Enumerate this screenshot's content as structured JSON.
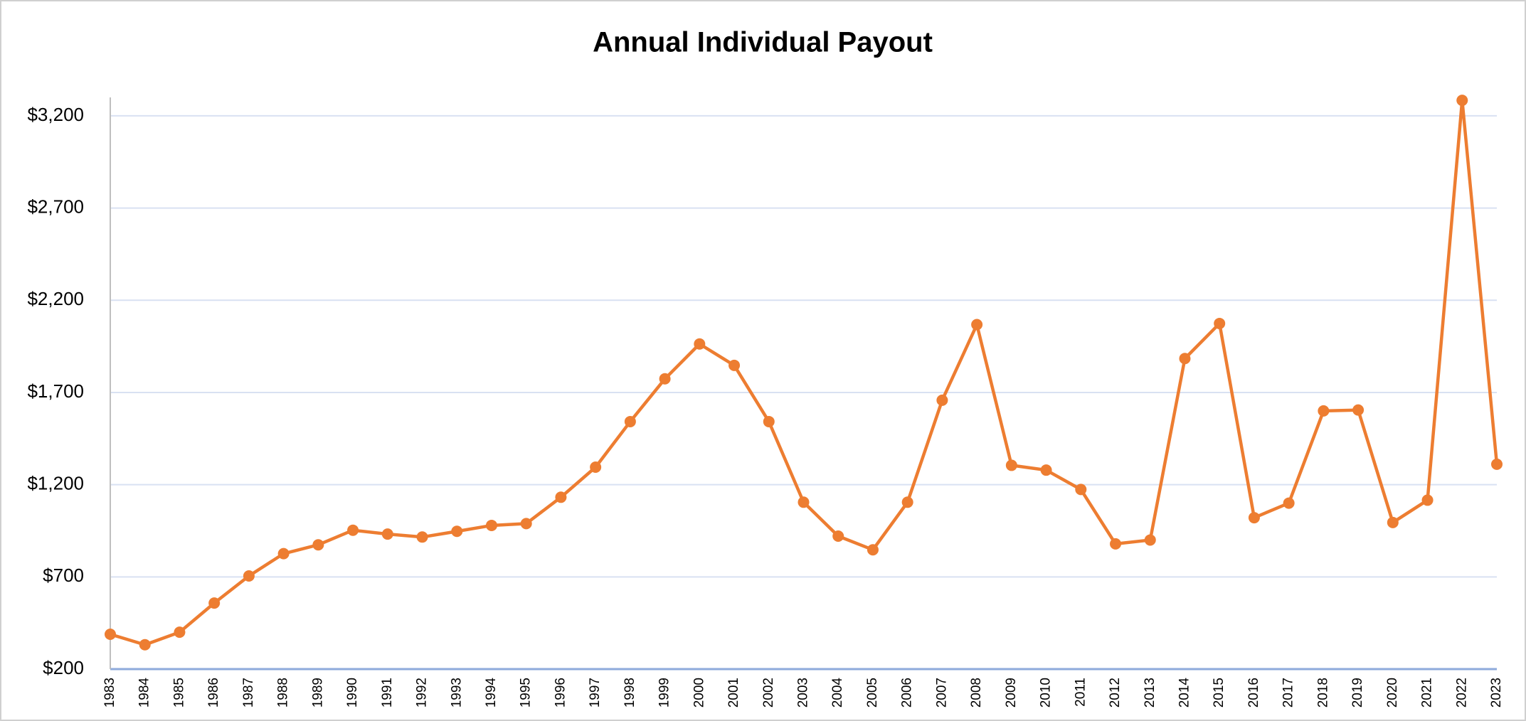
{
  "chart_data": {
    "type": "line",
    "title": "Annual Individual Payout",
    "categories": [
      "1983",
      "1984",
      "1985",
      "1986",
      "1987",
      "1988",
      "1989",
      "1990",
      "1991",
      "1992",
      "1993",
      "1994",
      "1995",
      "1996",
      "1997",
      "1998",
      "1999",
      "2000",
      "2001",
      "2002",
      "2003",
      "2004",
      "2005",
      "2006",
      "2007",
      "2008",
      "2009",
      "2010",
      "2011",
      "2012",
      "2013",
      "2014",
      "2015",
      "2016",
      "2017",
      "2018",
      "2019",
      "2020",
      "2021",
      "2022",
      "2023"
    ],
    "series": [
      {
        "name": "Annual Individual Payout",
        "color": "#ed7d31",
        "values": [
          389,
          332,
          400,
          558,
          705,
          826,
          874,
          953,
          932,
          916,
          947,
          979,
          989,
          1132,
          1295,
          1542,
          1774,
          1963,
          1847,
          1542,
          1105,
          921,
          847,
          1105,
          1658,
          2068,
          1305,
          1279,
          1174,
          879,
          900,
          1884,
          2074,
          1021,
          1100,
          1600,
          1605,
          995,
          1116,
          3284,
          1311
        ]
      }
    ],
    "ylim": [
      200,
      3300
    ],
    "yticks": [
      {
        "value": 200,
        "label": "$200"
      },
      {
        "value": 700,
        "label": "$700"
      },
      {
        "value": 1200,
        "label": "$1,200"
      },
      {
        "value": 1700,
        "label": "$1,700"
      },
      {
        "value": 2200,
        "label": "$2,200"
      },
      {
        "value": 2700,
        "label": "$2,700"
      },
      {
        "value": 3200,
        "label": "$3,200"
      }
    ],
    "grid": true
  }
}
